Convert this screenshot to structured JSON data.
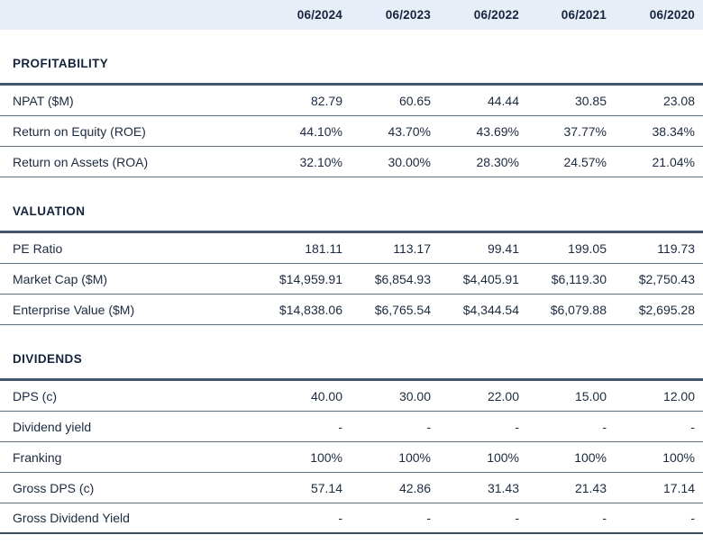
{
  "table": {
    "corner_label": "",
    "columns": [
      "06/2024",
      "06/2023",
      "06/2022",
      "06/2021",
      "06/2020"
    ],
    "sections": [
      {
        "title": "PROFITABILITY",
        "rows": [
          {
            "label": "NPAT ($M)",
            "values": [
              "82.79",
              "60.65",
              "44.44",
              "30.85",
              "23.08"
            ]
          },
          {
            "label": "Return on Equity (ROE)",
            "values": [
              "44.10%",
              "43.70%",
              "43.69%",
              "37.77%",
              "38.34%"
            ]
          },
          {
            "label": "Return on Assets (ROA)",
            "values": [
              "32.10%",
              "30.00%",
              "28.30%",
              "24.57%",
              "21.04%"
            ]
          }
        ]
      },
      {
        "title": "VALUATION",
        "rows": [
          {
            "label": "PE Ratio",
            "values": [
              "181.11",
              "113.17",
              "99.41",
              "199.05",
              "119.73"
            ]
          },
          {
            "label": "Market Cap ($M)",
            "values": [
              "$14,959.91",
              "$6,854.93",
              "$4,405.91",
              "$6,119.30",
              "$2,750.43"
            ]
          },
          {
            "label": "Enterprise Value ($M)",
            "values": [
              "$14,838.06",
              "$6,765.54",
              "$4,344.54",
              "$6,079.88",
              "$2,695.28"
            ]
          }
        ]
      },
      {
        "title": "DIVIDENDS",
        "rows": [
          {
            "label": "DPS (c)",
            "values": [
              "40.00",
              "30.00",
              "22.00",
              "15.00",
              "12.00"
            ]
          },
          {
            "label": "Dividend yield",
            "values": [
              "-",
              "-",
              "-",
              "-",
              "-"
            ]
          },
          {
            "label": "Franking",
            "values": [
              "100%",
              "100%",
              "100%",
              "100%",
              "100%"
            ]
          },
          {
            "label": "Gross DPS (c)",
            "values": [
              "57.14",
              "42.86",
              "31.43",
              "21.43",
              "17.14"
            ]
          },
          {
            "label": "Gross Dividend Yield",
            "values": [
              "-",
              "-",
              "-",
              "-",
              "-"
            ]
          }
        ]
      }
    ],
    "colors": {
      "header_bg": "#e8eef7",
      "text": "#1c2a40",
      "section_border": "#44566b",
      "row_border": "#5f6e82",
      "bottom_border": "#3d4d61"
    }
  }
}
